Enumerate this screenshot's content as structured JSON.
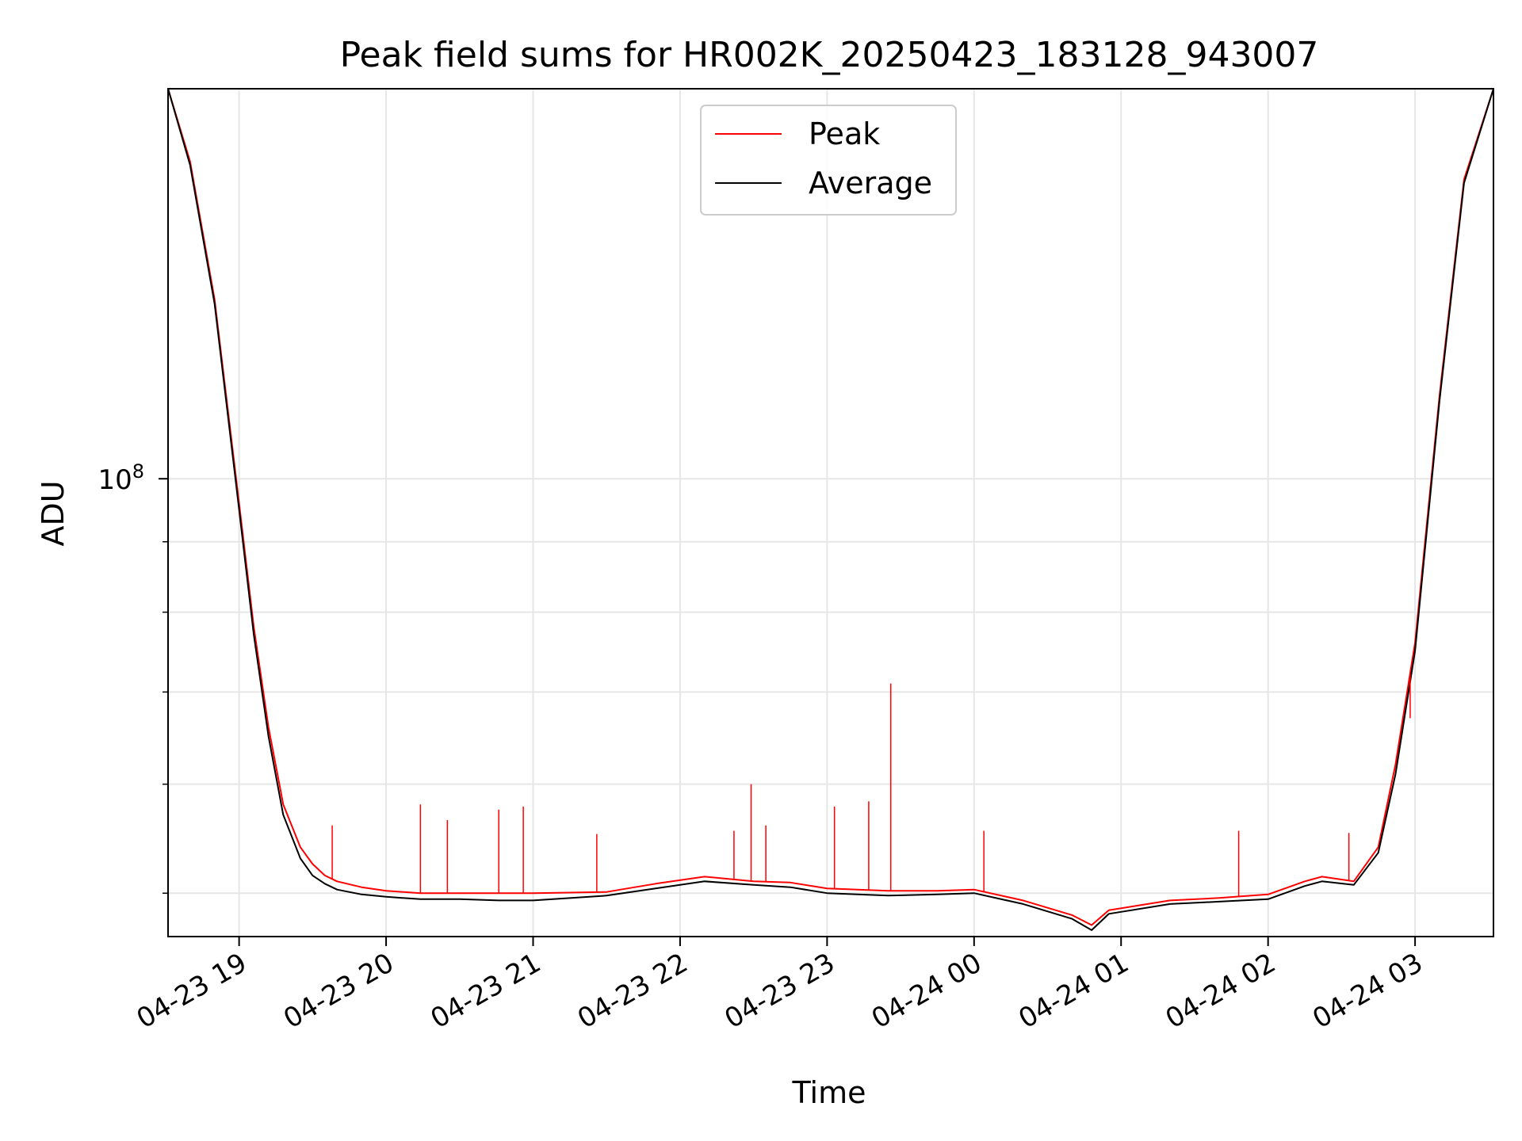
{
  "chart_data": {
    "type": "line",
    "title": "Peak field sums for HR002K_20250423_183128_943007",
    "xlabel": "Time",
    "ylabel": "ADU",
    "yscale": "log",
    "xlim": [
      "2025-04-23 18:31",
      "2025-04-24 03:32"
    ],
    "ylim": [
      46500000,
      192000000
    ],
    "grid": true,
    "legend_position": "upper center",
    "x_tick_labels": [
      "04-23 19",
      "04-23 20",
      "04-23 21",
      "04-23 22",
      "04-23 23",
      "04-24 00",
      "04-24 01",
      "04-24 02",
      "04-24 03"
    ],
    "x_ticks": [
      "2025-04-23 19:00",
      "2025-04-23 20:00",
      "2025-04-23 21:00",
      "2025-04-23 22:00",
      "2025-04-23 23:00",
      "2025-04-24 00:00",
      "2025-04-24 01:00",
      "2025-04-24 02:00",
      "2025-04-24 03:00"
    ],
    "y_tick_labels": [
      {
        "base": "10",
        "exp": "8",
        "value": 100000000
      }
    ],
    "y_minor_ticks": [
      50000000,
      60000000,
      70000000,
      80000000,
      90000000,
      200000000
    ],
    "series": [
      {
        "name": "Peak",
        "color": "#ff0000",
        "x": [
          "2025-04-23 18:31",
          "2025-04-23 18:40",
          "2025-04-23 18:50",
          "2025-04-23 19:00",
          "2025-04-23 19:06",
          "2025-04-23 19:12",
          "2025-04-23 19:18",
          "2025-04-23 19:25",
          "2025-04-23 19:30",
          "2025-04-23 19:35",
          "2025-04-23 19:40",
          "2025-04-23 19:50",
          "2025-04-23 20:00",
          "2025-04-23 20:14",
          "2025-04-23 20:30",
          "2025-04-23 20:46",
          "2025-04-23 21:00",
          "2025-04-23 21:30",
          "2025-04-23 21:50",
          "2025-04-23 22:10",
          "2025-04-23 22:30",
          "2025-04-23 22:45",
          "2025-04-23 23:00",
          "2025-04-23 23:25",
          "2025-04-23 23:45",
          "2025-04-24 00:00",
          "2025-04-24 00:20",
          "2025-04-24 00:40",
          "2025-04-24 00:48",
          "2025-04-24 00:55",
          "2025-04-24 01:20",
          "2025-04-24 01:40",
          "2025-04-24 02:00",
          "2025-04-24 02:15",
          "2025-04-24 02:22",
          "2025-04-24 02:35",
          "2025-04-24 02:45",
          "2025-04-24 02:52",
          "2025-04-24 03:00",
          "2025-04-24 03:10",
          "2025-04-24 03:20",
          "2025-04-24 03:32"
        ],
        "values": [
          192000000,
          170000000,
          135000000,
          96000000,
          78000000,
          66000000,
          58000000,
          54000000,
          52500000,
          51500000,
          51000000,
          50500000,
          50200000,
          50000000,
          50000000,
          50000000,
          50000000,
          50100000,
          50800000,
          51400000,
          51000000,
          50900000,
          50400000,
          50200000,
          50200000,
          50300000,
          49400000,
          48200000,
          47400000,
          48600000,
          49400000,
          49600000,
          49900000,
          51000000,
          51400000,
          51000000,
          54000000,
          62000000,
          76000000,
          115000000,
          165000000,
          192000000
        ]
      },
      {
        "name": "Average",
        "color": "#000000",
        "x": [
          "2025-04-23 18:31",
          "2025-04-23 18:40",
          "2025-04-23 18:50",
          "2025-04-23 19:00",
          "2025-04-23 19:06",
          "2025-04-23 19:12",
          "2025-04-23 19:18",
          "2025-04-23 19:25",
          "2025-04-23 19:30",
          "2025-04-23 19:35",
          "2025-04-23 19:40",
          "2025-04-23 19:50",
          "2025-04-23 20:00",
          "2025-04-23 20:14",
          "2025-04-23 20:30",
          "2025-04-23 20:46",
          "2025-04-23 21:00",
          "2025-04-23 21:30",
          "2025-04-23 21:50",
          "2025-04-23 22:10",
          "2025-04-23 22:30",
          "2025-04-23 22:45",
          "2025-04-23 23:00",
          "2025-04-23 23:25",
          "2025-04-23 23:45",
          "2025-04-24 00:00",
          "2025-04-24 00:20",
          "2025-04-24 00:40",
          "2025-04-24 00:48",
          "2025-04-24 00:55",
          "2025-04-24 01:20",
          "2025-04-24 01:40",
          "2025-04-24 02:00",
          "2025-04-24 02:15",
          "2025-04-24 02:22",
          "2025-04-24 02:35",
          "2025-04-24 02:45",
          "2025-04-24 02:52",
          "2025-04-24 03:00",
          "2025-04-24 03:10",
          "2025-04-24 03:20",
          "2025-04-24 03:32"
        ],
        "values": [
          192000000,
          169000000,
          134000000,
          95000000,
          77000000,
          65000000,
          57000000,
          53000000,
          51500000,
          50800000,
          50300000,
          49900000,
          49700000,
          49500000,
          49500000,
          49400000,
          49400000,
          49800000,
          50400000,
          51000000,
          50700000,
          50500000,
          50000000,
          49800000,
          49900000,
          50000000,
          49100000,
          47900000,
          47000000,
          48300000,
          49100000,
          49300000,
          49500000,
          50600000,
          51000000,
          50700000,
          53500000,
          61000000,
          75000000,
          114000000,
          164000000,
          192000000
        ]
      }
    ],
    "peak_spikes": [
      {
        "x": "2025-04-23 19:38",
        "value": 56000000
      },
      {
        "x": "2025-04-23 20:14",
        "value": 58000000
      },
      {
        "x": "2025-04-23 20:25",
        "value": 56500000
      },
      {
        "x": "2025-04-23 20:46",
        "value": 57500000
      },
      {
        "x": "2025-04-23 20:56",
        "value": 57800000
      },
      {
        "x": "2025-04-23 21:26",
        "value": 55200000
      },
      {
        "x": "2025-04-23 22:22",
        "value": 55500000
      },
      {
        "x": "2025-04-23 22:29",
        "value": 60000000
      },
      {
        "x": "2025-04-23 22:35",
        "value": 56000000
      },
      {
        "x": "2025-04-23 23:03",
        "value": 57800000
      },
      {
        "x": "2025-04-23 23:17",
        "value": 58300000
      },
      {
        "x": "2025-04-23 23:26",
        "value": 71000000
      },
      {
        "x": "2025-04-24 00:04",
        "value": 55500000
      },
      {
        "x": "2025-04-24 01:48",
        "value": 55500000
      },
      {
        "x": "2025-04-24 02:33",
        "value": 55300000
      },
      {
        "x": "2025-04-24 02:58",
        "value": 67000000
      }
    ]
  }
}
